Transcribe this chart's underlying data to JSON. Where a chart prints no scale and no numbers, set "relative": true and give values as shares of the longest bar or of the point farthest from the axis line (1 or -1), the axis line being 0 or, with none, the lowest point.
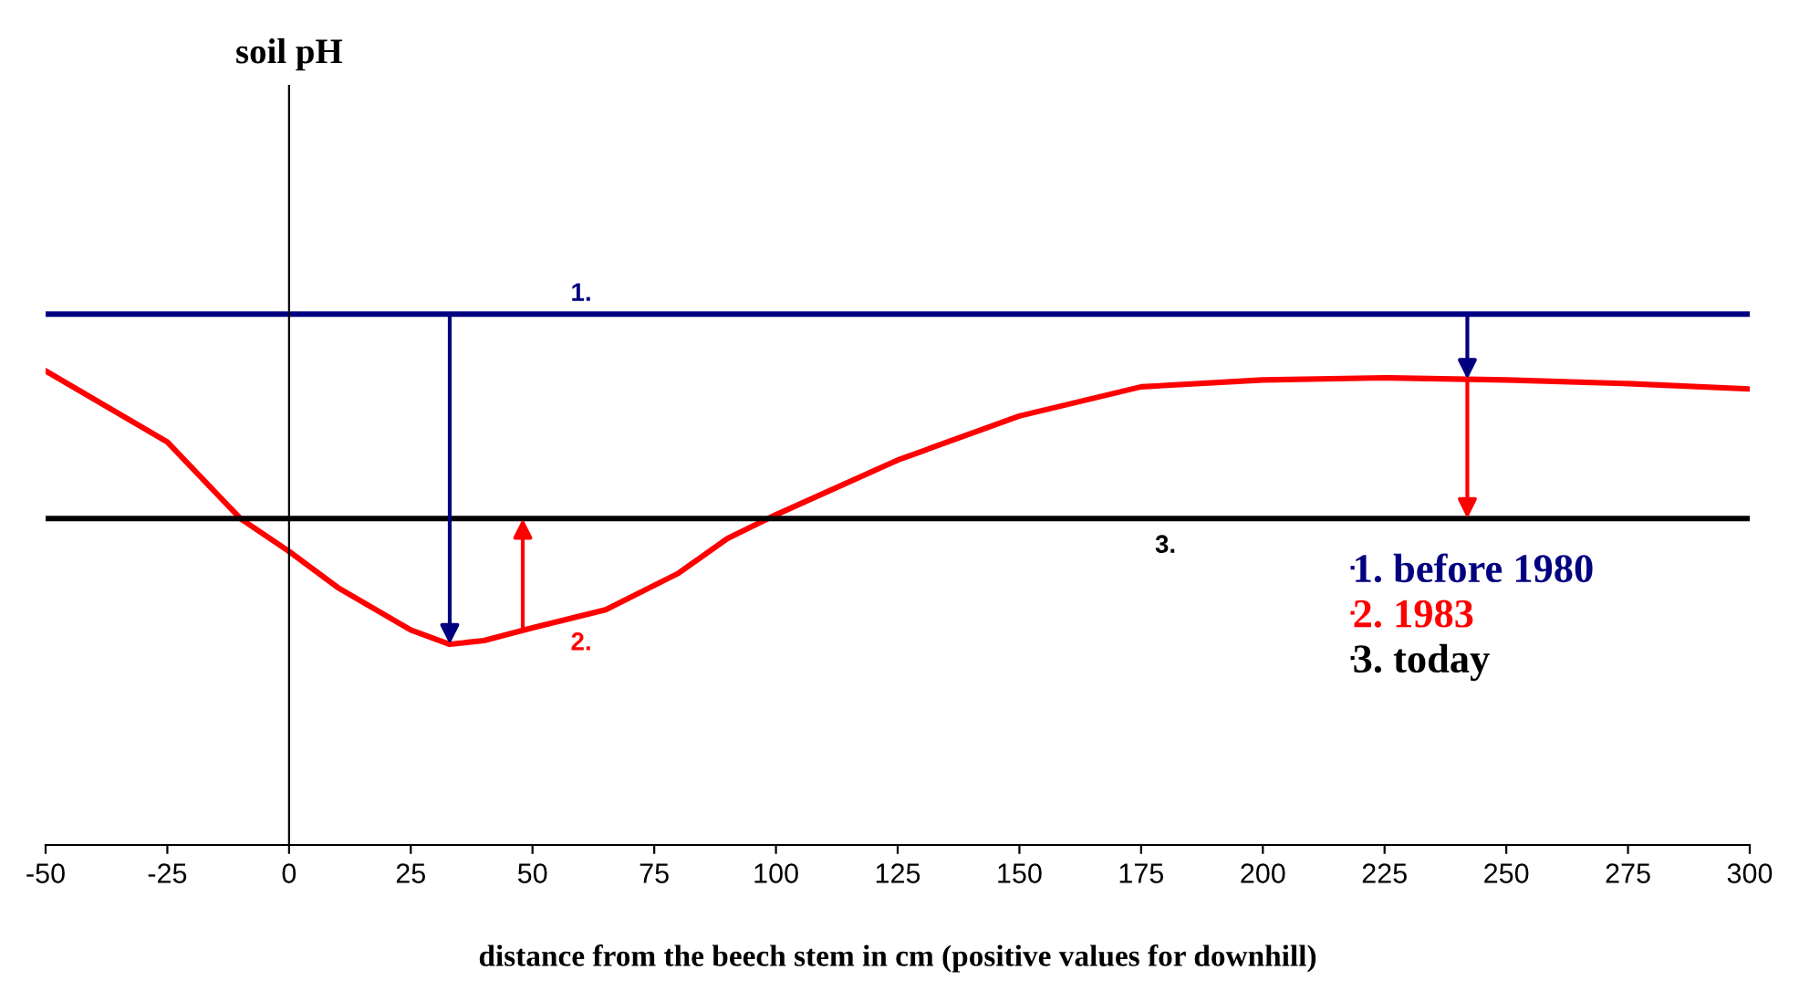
{
  "chart_data": {
    "type": "line",
    "relative": true,
    "xlabel": "distance from the beech stem in cm (positive values for downhill)",
    "xlim": [
      -50,
      300
    ],
    "xticks": [
      -50,
      -25,
      0,
      25,
      50,
      75,
      100,
      125,
      150,
      175,
      200,
      225,
      250,
      275,
      300
    ],
    "series": [
      {
        "name": "1. before 1980",
        "color": "#000080",
        "x": [
          -50,
          300
        ],
        "values": [
          1,
          1
        ]
      },
      {
        "name": "2. 1983",
        "color": "#ff0000",
        "x": [
          -50,
          -25,
          -10,
          0,
          10,
          25,
          33,
          40,
          50,
          65,
          80,
          90,
          100,
          125,
          150,
          175,
          200,
          225,
          250,
          275,
          300
        ],
        "values": [
          0.893,
          0.759,
          0.615,
          0.553,
          0.485,
          0.405,
          0.378,
          0.385,
          0.409,
          0.443,
          0.512,
          0.577,
          0.622,
          0.725,
          0.808,
          0.863,
          0.876,
          0.88,
          0.876,
          0.869,
          0.859
        ]
      },
      {
        "name": "3. today",
        "color": "#000000",
        "x": [
          -50,
          300
        ],
        "values": [
          0.615,
          0.615
        ]
      }
    ],
    "annotations": [
      "1.",
      "2.",
      "3.",
      "soil pH"
    ],
    "legend": "right",
    "grid": false
  }
}
